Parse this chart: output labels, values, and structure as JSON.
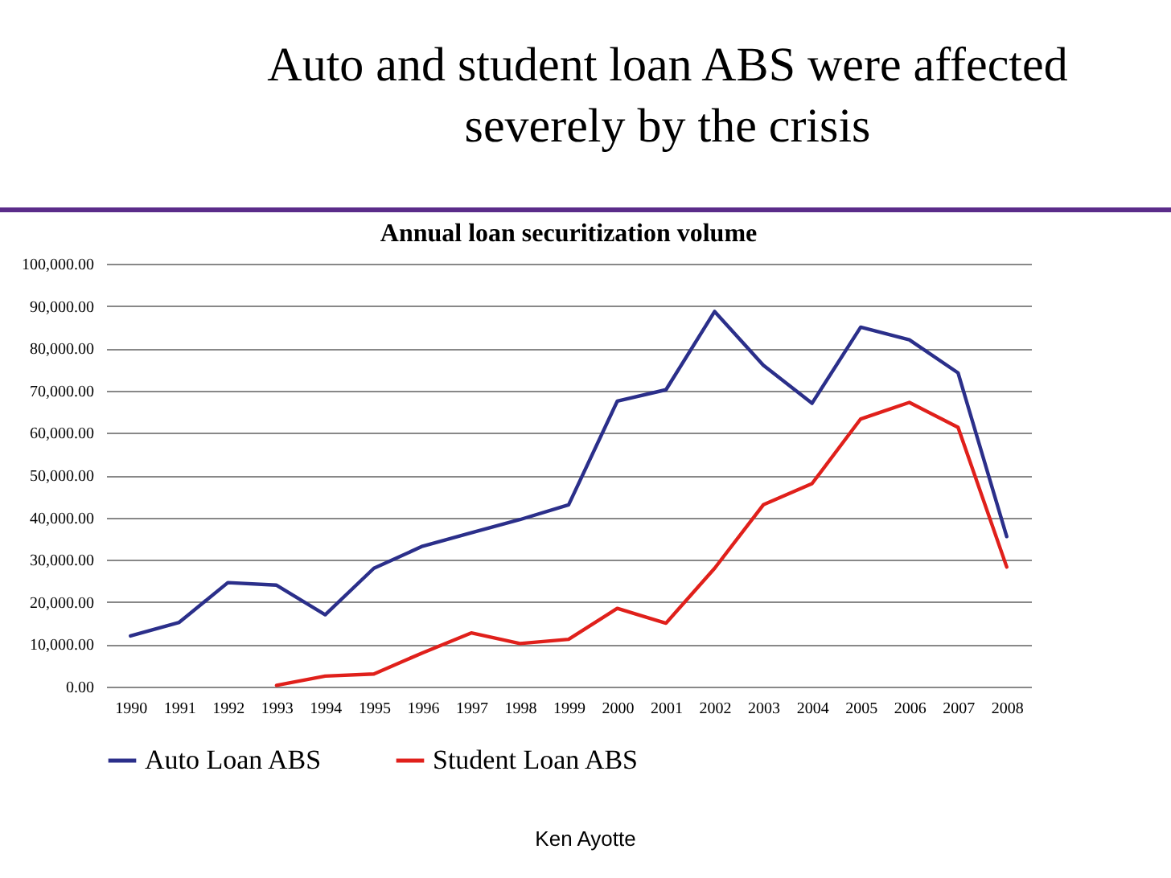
{
  "chart_data": {
    "type": "line",
    "title": "Auto and student loan ABS were affected severely by the crisis",
    "subtitle": "Annual loan securitization volume",
    "categories": [
      "1990",
      "1991",
      "1992",
      "1993",
      "1994",
      "1995",
      "1996",
      "1997",
      "1998",
      "1999",
      "2000",
      "2001",
      "2002",
      "2003",
      "2004",
      "2005",
      "2006",
      "2007",
      "2008"
    ],
    "series": [
      {
        "name": "Auto Loan ABS",
        "color": "#2b2f8a",
        "values": [
          12000,
          15200,
          24600,
          24000,
          17000,
          28000,
          33200,
          36400,
          39500,
          43000,
          67500,
          70200,
          88700,
          76000,
          67000,
          85000,
          82000,
          74200,
          35500
        ]
      },
      {
        "name": "Student Loan ABS",
        "color": "#e0201b",
        "values": [
          null,
          null,
          null,
          300,
          2500,
          3000,
          8000,
          12700,
          10200,
          11200,
          18500,
          15000,
          28000,
          43000,
          48000,
          63300,
          67200,
          61300,
          28300
        ]
      }
    ],
    "ylim": [
      0,
      100000
    ],
    "yticks": [
      {
        "value": 0,
        "label": "0.00"
      },
      {
        "value": 10000,
        "label": "10,000.00"
      },
      {
        "value": 20000,
        "label": "20,000.00"
      },
      {
        "value": 30000,
        "label": "30,000.00"
      },
      {
        "value": 40000,
        "label": "40,000.00"
      },
      {
        "value": 50000,
        "label": "50,000.00"
      },
      {
        "value": 60000,
        "label": "60,000.00"
      },
      {
        "value": 70000,
        "label": "70,000.00"
      },
      {
        "value": 80000,
        "label": "80,000.00"
      },
      {
        "value": 90000,
        "label": "90,000.00"
      },
      {
        "value": 100000,
        "label": "100,000.00"
      }
    ],
    "grid": "y",
    "legend": "bottom",
    "annotations": [
      "Ken Ayotte"
    ]
  }
}
